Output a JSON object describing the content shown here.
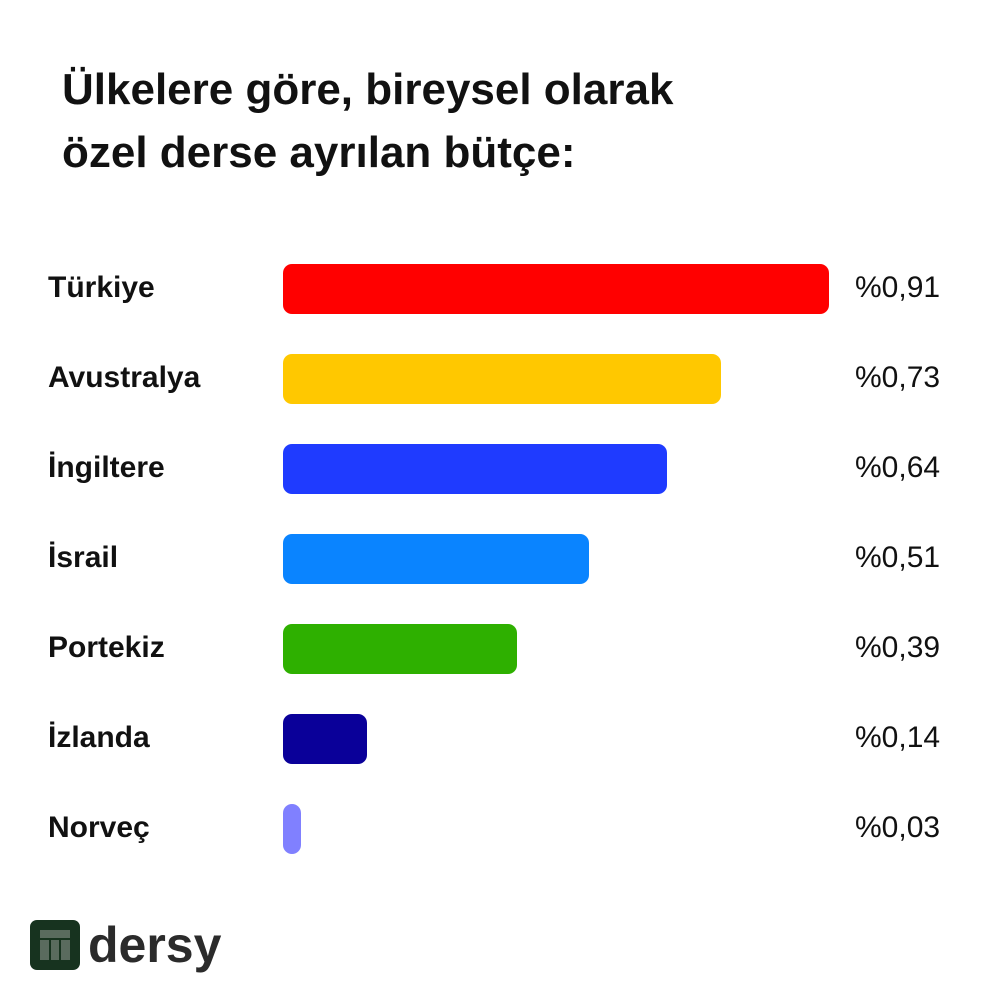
{
  "chart_data": {
    "type": "bar",
    "orientation": "horizontal",
    "title": "Ülkelere göre, bireysel olarak özel derse ayrılan bütçe:",
    "categories": [
      "Türkiye",
      "Avustralya",
      "İngiltere",
      "İsrail",
      "Portekiz",
      "İzlanda",
      "Norveç"
    ],
    "values": [
      0.91,
      0.73,
      0.64,
      0.51,
      0.39,
      0.14,
      0.03
    ],
    "value_labels": [
      "%0,91",
      "%0,73",
      "%0,64",
      "%0,51",
      "%0,39",
      "%0,14",
      "%0,03"
    ],
    "colors": [
      "#ff0000",
      "#ffc800",
      "#1f3bff",
      "#0a84ff",
      "#2eb000",
      "#0a0099",
      "#8080ff"
    ]
  },
  "logo": "dersy"
}
